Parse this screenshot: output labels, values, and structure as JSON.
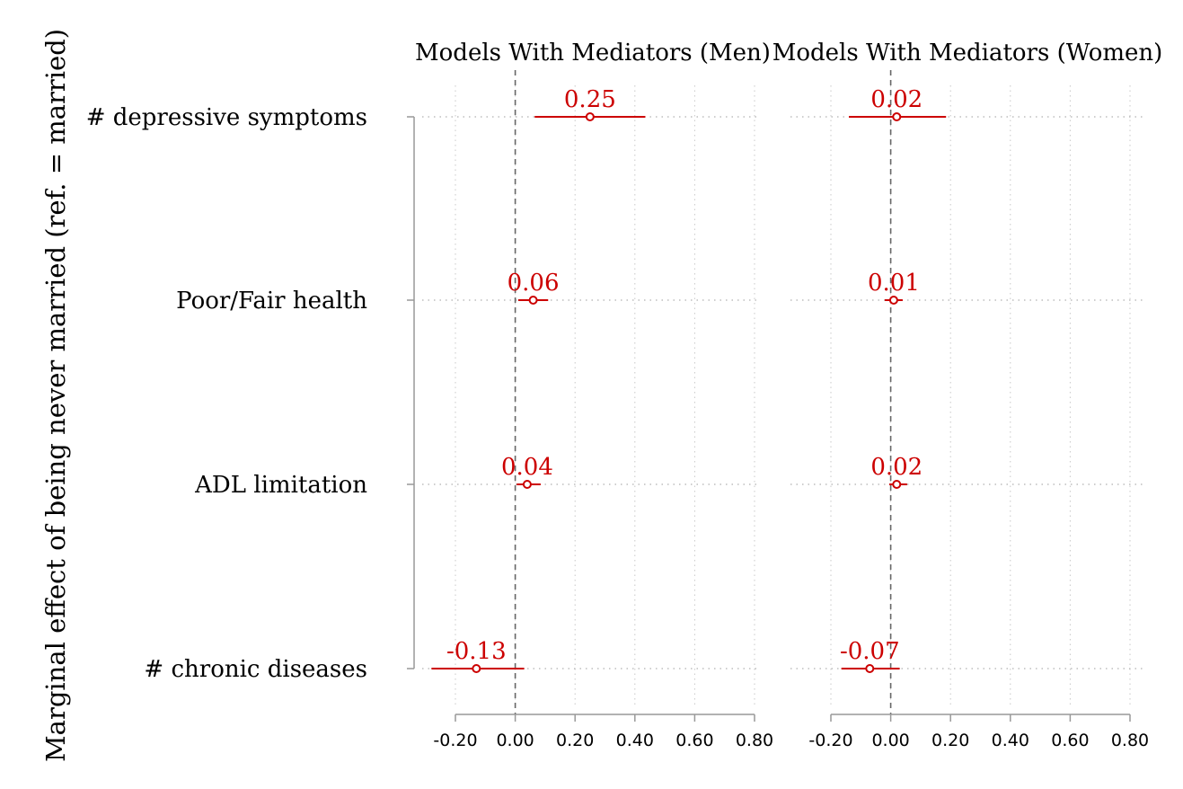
{
  "figure": {
    "ylabel": "Marginal effect of being never married (ref. = married)"
  },
  "chart_data": {
    "type": "scatter",
    "subtype": "coefficient-plot-with-confidence-intervals",
    "categories": [
      "# depressive symptoms",
      "Poor/Fair health",
      "ADL limitation",
      "# chronic diseases"
    ],
    "xlim": [
      -0.2,
      0.8
    ],
    "xticks": [
      -0.2,
      0.0,
      0.2,
      0.4,
      0.6,
      0.8
    ],
    "xtick_labels": [
      "-0.20",
      "0.00",
      "0.20",
      "0.40",
      "0.60",
      "0.80"
    ],
    "reference_line": 0.0,
    "grid": true,
    "marker_color": "#cc0000",
    "panels": [
      {
        "title": "Models With Mediators (Men)",
        "estimates": [
          0.25,
          0.06,
          0.04,
          -0.13
        ],
        "labels": [
          "0.25",
          "0.06",
          "0.04",
          "-0.13"
        ],
        "ci_low": [
          0.065,
          0.01,
          0.005,
          -0.28
        ],
        "ci_high": [
          0.435,
          0.11,
          0.085,
          0.03
        ]
      },
      {
        "title": "Models With Mediators (Women)",
        "estimates": [
          0.02,
          0.01,
          0.02,
          -0.07
        ],
        "labels": [
          "0.02",
          "0.01",
          "0.02",
          "-0.07"
        ],
        "ci_low": [
          -0.14,
          -0.02,
          -0.005,
          -0.165
        ],
        "ci_high": [
          0.185,
          0.04,
          0.055,
          0.03
        ]
      }
    ]
  }
}
